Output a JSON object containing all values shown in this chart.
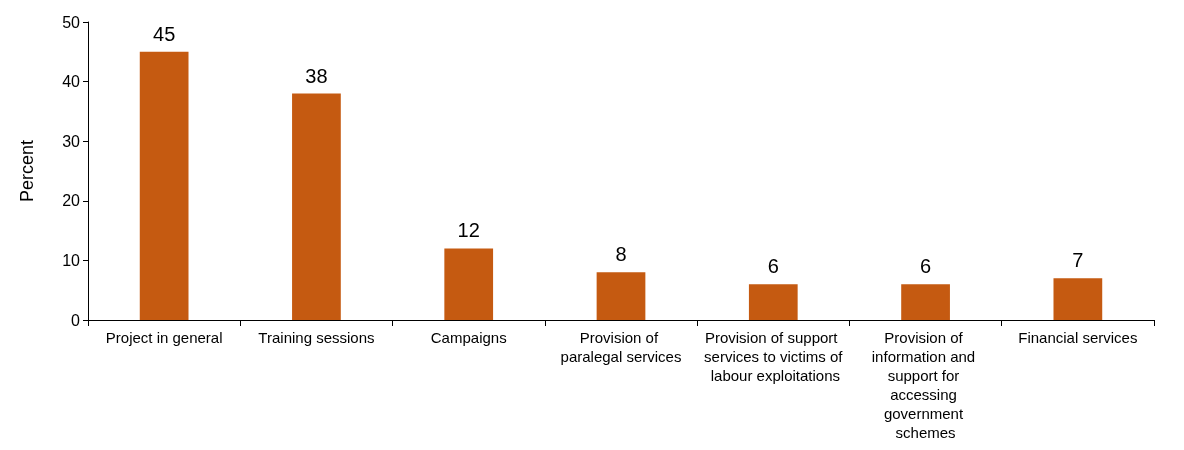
{
  "chart_data": {
    "type": "bar",
    "ylabel": "Percent",
    "categories": [
      "Project in general",
      "Training sessions",
      "Campaigns",
      "Provision of paralegal services",
      "Provision of support services to victims of labour exploitations",
      "Provision of information and support for accessing government schemes",
      "Financial services"
    ],
    "values": [
      45,
      38,
      12,
      8,
      6,
      6,
      7
    ],
    "color": "#c55a11",
    "ylim": [
      0,
      50
    ],
    "yticks": [
      0,
      10,
      20,
      30,
      40,
      50
    ],
    "grid": false,
    "data_labels": true
  }
}
